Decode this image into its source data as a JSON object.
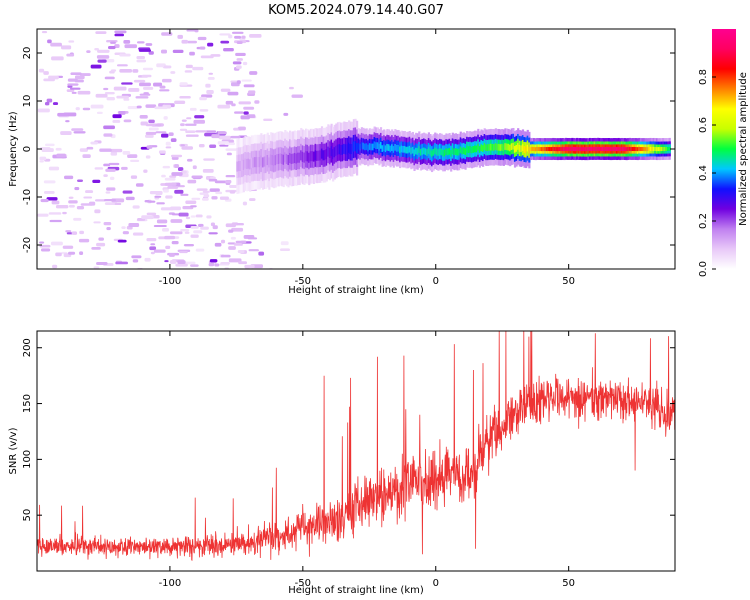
{
  "title": "KOM5.2024.079.14.40.G07",
  "chart_data": [
    {
      "type": "heatmap",
      "xlabel": "Height of straight line (km)",
      "ylabel": "Frequency (Hz)",
      "xlim": [
        -150,
        90
      ],
      "ylim": [
        -25,
        25
      ],
      "xticks": [
        -100,
        -50,
        0,
        50
      ],
      "yticks": [
        -20,
        -10,
        0,
        10,
        20
      ],
      "colorbar": {
        "label": "Normalized spectral amplitude",
        "range": [
          0,
          1
        ],
        "ticks": [
          0.0,
          0.2,
          0.4,
          0.6,
          0.8
        ],
        "colors": [
          "#ffffff",
          "#e8c8f8",
          "#c080f0",
          "#7000e0",
          "#1010ff",
          "#00c8ff",
          "#00ff40",
          "#c8ff00",
          "#ffff00",
          "#ff8000",
          "#ff0000",
          "#ff0060",
          "#ff0090"
        ]
      },
      "ridge": {
        "x": [
          -75,
          -65,
          -55,
          -45,
          -38,
          -30,
          -22,
          -12,
          -5,
          5,
          15,
          25,
          35,
          50,
          70,
          88
        ],
        "freq": [
          -3.5,
          -2.5,
          -2.0,
          -1.5,
          -0.5,
          0.5,
          0.5,
          -0.2,
          -0.5,
          -0.8,
          0.0,
          0.5,
          0.0,
          0.0,
          0.0,
          0.0
        ],
        "amplitude": [
          0.12,
          0.15,
          0.2,
          0.25,
          0.28,
          0.35,
          0.4,
          0.42,
          0.45,
          0.48,
          0.5,
          0.55,
          0.7,
          0.95,
          0.95,
          0.5
        ]
      },
      "noise": {
        "x_range": [
          -150,
          -70
        ],
        "amplitude": 0.06
      }
    },
    {
      "type": "line",
      "xlabel": "Height of straight line (km)",
      "ylabel": "SNR (v/v)",
      "xlim": [
        -150,
        90
      ],
      "ylim": [
        0,
        215
      ],
      "xticks": [
        -100,
        -50,
        0,
        50
      ],
      "yticks": [
        50,
        100,
        150,
        200
      ],
      "color": "#ee3333",
      "trend": {
        "x": [
          -150,
          -110,
          -80,
          -65,
          -50,
          -40,
          -30,
          -20,
          -10,
          0,
          10,
          15,
          20,
          30,
          40,
          50,
          60,
          70,
          80,
          90
        ],
        "mean": [
          22,
          22,
          23,
          28,
          38,
          45,
          55,
          68,
          78,
          80,
          85,
          92,
          120,
          140,
          155,
          155,
          155,
          150,
          150,
          138
        ],
        "spread": [
          14,
          14,
          16,
          20,
          28,
          32,
          38,
          42,
          42,
          42,
          42,
          40,
          40,
          38,
          34,
          30,
          30,
          30,
          30,
          28
        ]
      },
      "spikes": [
        {
          "x": -50,
          "y": 60
        },
        {
          "x": -42,
          "y": 175
        },
        {
          "x": -32,
          "y": 173
        },
        {
          "x": -22,
          "y": 192
        },
        {
          "x": -12,
          "y": 193
        },
        {
          "x": -6,
          "y": 140
        },
        {
          "x": -5,
          "y": 15
        },
        {
          "x": 15,
          "y": 20
        },
        {
          "x": 35,
          "y": 210
        },
        {
          "x": 60,
          "y": 213
        },
        {
          "x": 75,
          "y": 90
        }
      ]
    }
  ]
}
